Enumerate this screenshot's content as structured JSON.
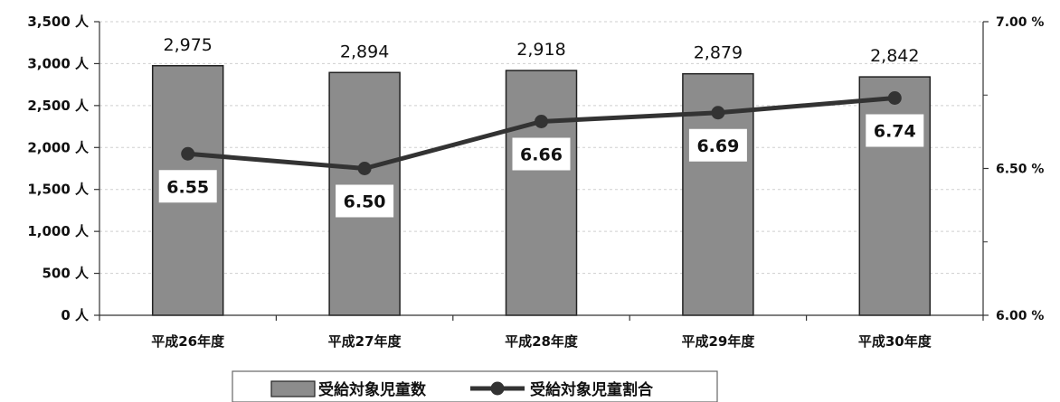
{
  "chart_data": {
    "type": "bar",
    "categories": [
      "平成26年度",
      "平成27年度",
      "平成28年度",
      "平成29年度",
      "平成30年度"
    ],
    "series": [
      {
        "name": "受給対象児童数",
        "type": "bar",
        "axis": "left",
        "values": [
          2975,
          2894,
          2918,
          2879,
          2842
        ],
        "labels": [
          "2,975",
          "2,894",
          "2,918",
          "2,879",
          "2,842"
        ]
      },
      {
        "name": "受給対象児童割合",
        "type": "line",
        "axis": "right",
        "values": [
          6.55,
          6.5,
          6.66,
          6.69,
          6.74
        ],
        "labels": [
          "6.55",
          "6.50",
          "6.66",
          "6.69",
          "6.74"
        ]
      }
    ],
    "y_left": {
      "range": [
        0,
        3500
      ],
      "ticks": [
        0,
        500,
        1000,
        1500,
        2000,
        2500,
        3000,
        3500
      ],
      "tick_labels": [
        "0 人",
        "500 人",
        "1,000 人",
        "1,500 人",
        "2,000 人",
        "2,500 人",
        "3,000 人",
        "3,500 人"
      ]
    },
    "y_right": {
      "range": [
        6.0,
        7.0
      ],
      "ticks": [
        6.0,
        6.5,
        7.0
      ],
      "tick_labels": [
        "6.00 %",
        "6.50 %",
        "7.00 %"
      ]
    },
    "grid": true,
    "legend": "bottom",
    "colors": {
      "bar_fill": "#8c8c8c",
      "bar_stroke": "#222222",
      "line": "#333333",
      "grid": "#cfcfcf"
    }
  }
}
